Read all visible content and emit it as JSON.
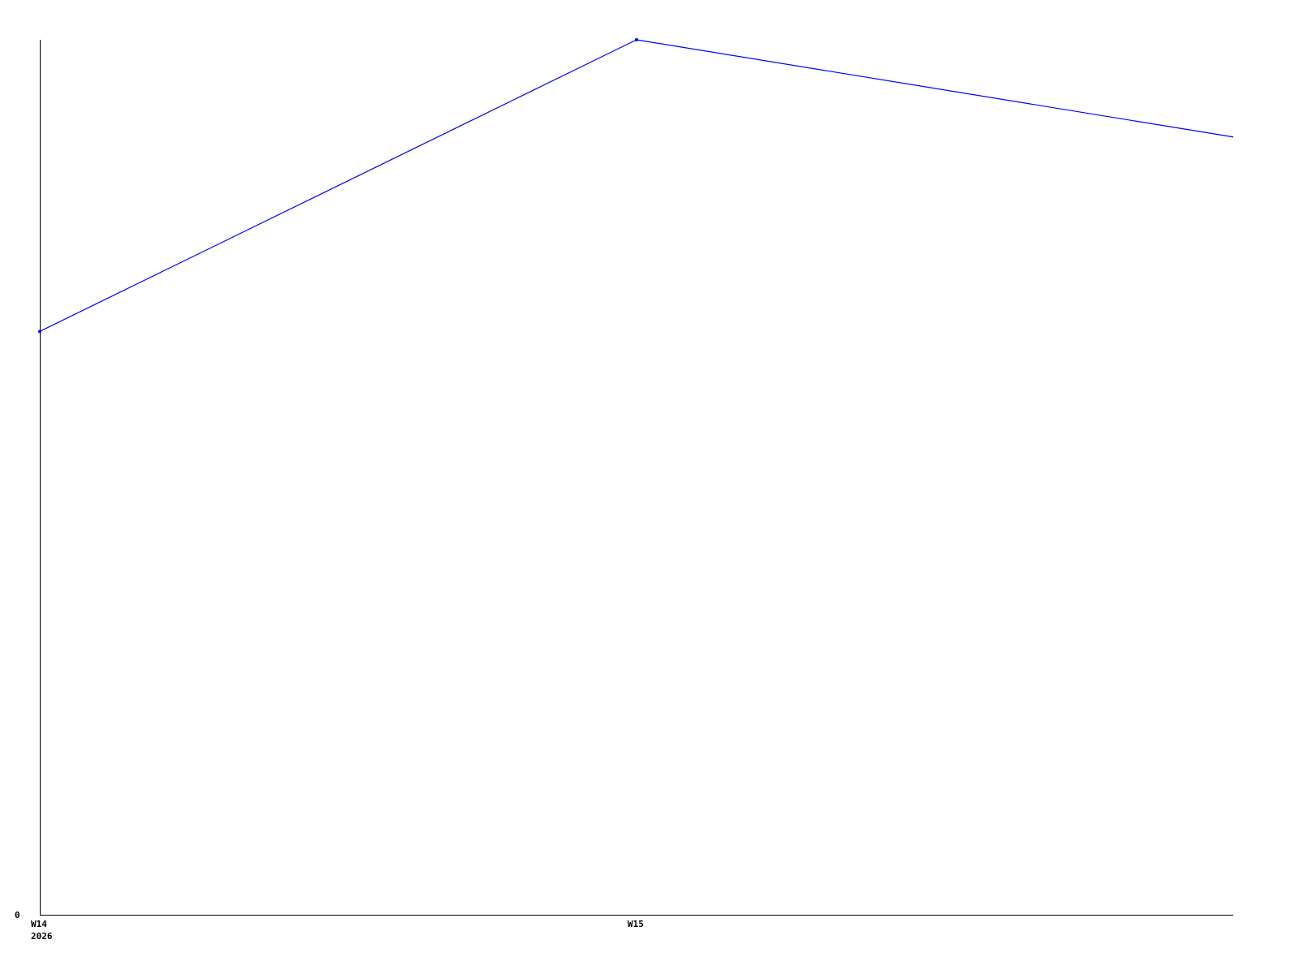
{
  "chart_data": {
    "type": "line",
    "title": "",
    "xlabel": "",
    "ylabel": "",
    "x": [
      14,
      15,
      16
    ],
    "x_tick_labels": [
      {
        "x": 14,
        "label": "W14",
        "sublabel": "2026"
      },
      {
        "x": 15,
        "label": "W15",
        "sublabel": ""
      }
    ],
    "y_tick_labels": [
      {
        "y": 0,
        "label": "0"
      }
    ],
    "series": [
      {
        "values": [
          6,
          9,
          8
        ],
        "color": "#0000ff"
      }
    ],
    "xlim": [
      14,
      16
    ],
    "ylim": [
      0,
      9
    ],
    "grid": false,
    "legend": "none",
    "axis_color": "#000000"
  }
}
